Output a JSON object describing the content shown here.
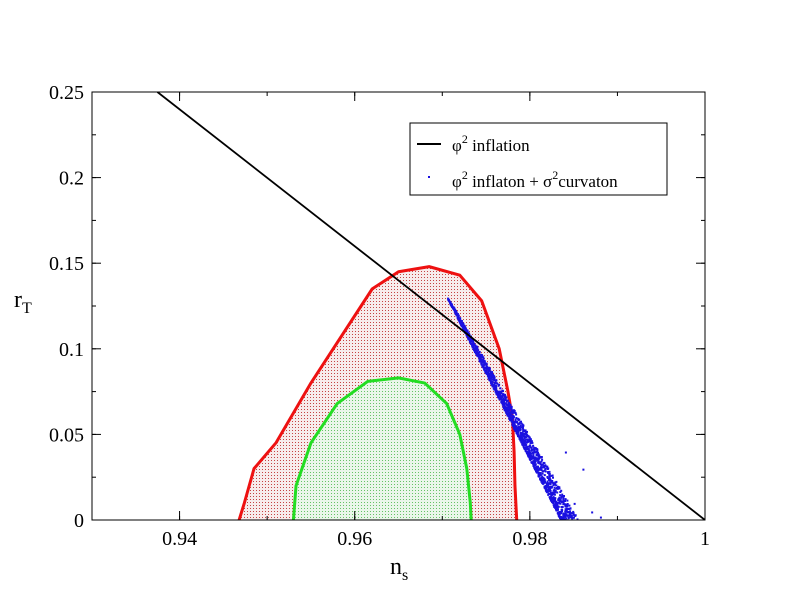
{
  "chart_data": {
    "type": "scatter",
    "xlabel": "n",
    "xlabel_sub": "s",
    "ylabel": "r",
    "ylabel_sub": "T",
    "xlim": [
      0.93,
      1.0
    ],
    "ylim": [
      0,
      0.25
    ],
    "xticks": [
      0.94,
      0.96,
      0.98,
      1.0
    ],
    "xtick_labels": [
      "0.94",
      "0.96",
      "0.98",
      "1"
    ],
    "yticks": [
      0,
      0.05,
      0.1,
      0.15,
      0.2,
      0.25
    ],
    "ytick_labels": [
      "0",
      "0.05",
      "0.1",
      "0.15",
      "0.2",
      "0.25"
    ],
    "grid": false,
    "legend_position": "top-right",
    "legend": [
      {
        "symbol": "φ",
        "sup": "2",
        "text": " inflation"
      },
      {
        "symbol": "φ",
        "sup": "2",
        "text": " inflaton + ",
        "symbol2": "σ",
        "sup2": "2",
        "text2": "curvaton"
      }
    ],
    "series": [
      {
        "kind": "line",
        "color": "#000000",
        "points": [
          [
            0.93747,
            0.25
          ],
          [
            1.0,
            0.0
          ]
        ]
      },
      {
        "kind": "filled-contour",
        "stroke": "#ee1111",
        "fill": "#f3dede",
        "points": [
          [
            0.9468,
            0
          ],
          [
            0.9474,
            0.01
          ],
          [
            0.9485,
            0.03
          ],
          [
            0.951,
            0.045
          ],
          [
            0.955,
            0.08
          ],
          [
            0.962,
            0.135
          ],
          [
            0.965,
            0.145
          ],
          [
            0.9685,
            0.148
          ],
          [
            0.972,
            0.143
          ],
          [
            0.9745,
            0.128
          ],
          [
            0.9765,
            0.1
          ],
          [
            0.9775,
            0.075
          ],
          [
            0.978,
            0.06
          ],
          [
            0.9782,
            0.04
          ],
          [
            0.9783,
            0.02
          ],
          [
            0.9785,
            0
          ]
        ]
      },
      {
        "kind": "filled-contour",
        "stroke": "#22dd22",
        "fill": "#dcefdc",
        "points": [
          [
            0.953,
            0
          ],
          [
            0.9533,
            0.02
          ],
          [
            0.955,
            0.045
          ],
          [
            0.958,
            0.068
          ],
          [
            0.9615,
            0.081
          ],
          [
            0.965,
            0.083
          ],
          [
            0.968,
            0.08
          ],
          [
            0.9705,
            0.068
          ],
          [
            0.972,
            0.05
          ],
          [
            0.9728,
            0.03
          ],
          [
            0.9732,
            0.01
          ],
          [
            0.9733,
            0
          ]
        ]
      },
      {
        "kind": "scatter-band",
        "color": "#1a10e0",
        "start": [
          0.9705,
          0.13
        ],
        "end": [
          0.9835,
          0.0
        ],
        "spread_low": 0.1,
        "spread_high": 1.6,
        "outliers": [
          [
            0.985,
            0.01
          ],
          [
            0.987,
            0.005
          ],
          [
            0.988,
            0.002
          ],
          [
            0.986,
            0.03
          ],
          [
            0.984,
            0.04
          ]
        ]
      }
    ]
  }
}
